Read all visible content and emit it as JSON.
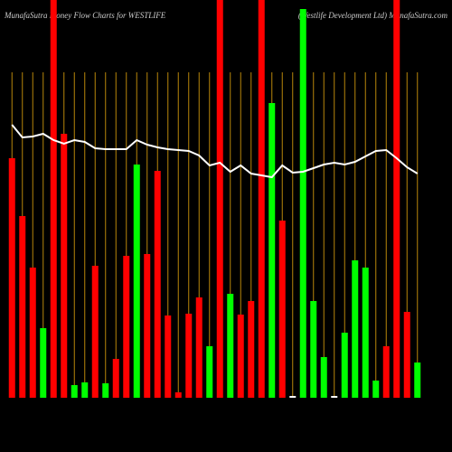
{
  "chart_data": {
    "type": "bar",
    "title": "MunafaSutra  Money Flow  Charts for WESTLIFE",
    "subtitle": "(Westlife  Development Ltd) MunafaSutra.com",
    "categories": [
      null,
      null,
      null,
      null,
      null,
      null,
      null,
      null,
      null,
      null,
      null,
      null,
      null,
      null,
      null,
      null,
      null,
      null,
      null,
      null,
      null,
      null,
      null,
      null,
      null,
      null,
      null,
      null,
      null,
      null,
      null,
      null,
      null,
      null,
      null,
      null,
      null,
      null,
      null,
      null
    ],
    "values": [
      265,
      201,
      144,
      77,
      440,
      292,
      14,
      17,
      146,
      16,
      43,
      157,
      258,
      159,
      251,
      91,
      6,
      93,
      111,
      57,
      440,
      115,
      92,
      107,
      440,
      326,
      196,
      2,
      430,
      107,
      45,
      2,
      72,
      152,
      144,
      19,
      57,
      440,
      95,
      39
    ],
    "colors": [
      "#ff0000",
      "#ff0000",
      "#ff0000",
      "#00ff00",
      "#ff0000",
      "#ff0000",
      "#00ff00",
      "#00ff00",
      "#ff0000",
      "#00ff00",
      "#ff0000",
      "#ff0000",
      "#00ff00",
      "#ff0000",
      "#ff0000",
      "#ff0000",
      "#ff0000",
      "#ff0000",
      "#ff0000",
      "#00ff00",
      "#ff0000",
      "#00ff00",
      "#ff0000",
      "#ff0000",
      "#ff0000",
      "#00ff00",
      "#ff0000",
      "#ffffff",
      "#00ff00",
      "#00ff00",
      "#00ff00",
      "#ffffff",
      "#00ff00",
      "#00ff00",
      "#00ff00",
      "#00ff00",
      "#ff0000",
      "#ff0000",
      "#ff0000",
      "#00ff00"
    ],
    "line_values": [
      302,
      288,
      289,
      292,
      285,
      281,
      285,
      283,
      276,
      275,
      275,
      275,
      285,
      280,
      277,
      275,
      274,
      273,
      268,
      257,
      260,
      250,
      257,
      248,
      246,
      244,
      257,
      249,
      250,
      254,
      258,
      260,
      258,
      261,
      267,
      273,
      274,
      265,
      255,
      248
    ],
    "line_color": "#ffffff",
    "grid_color": "#b8860b",
    "ylim": [
      0,
      440
    ],
    "grid": true
  }
}
